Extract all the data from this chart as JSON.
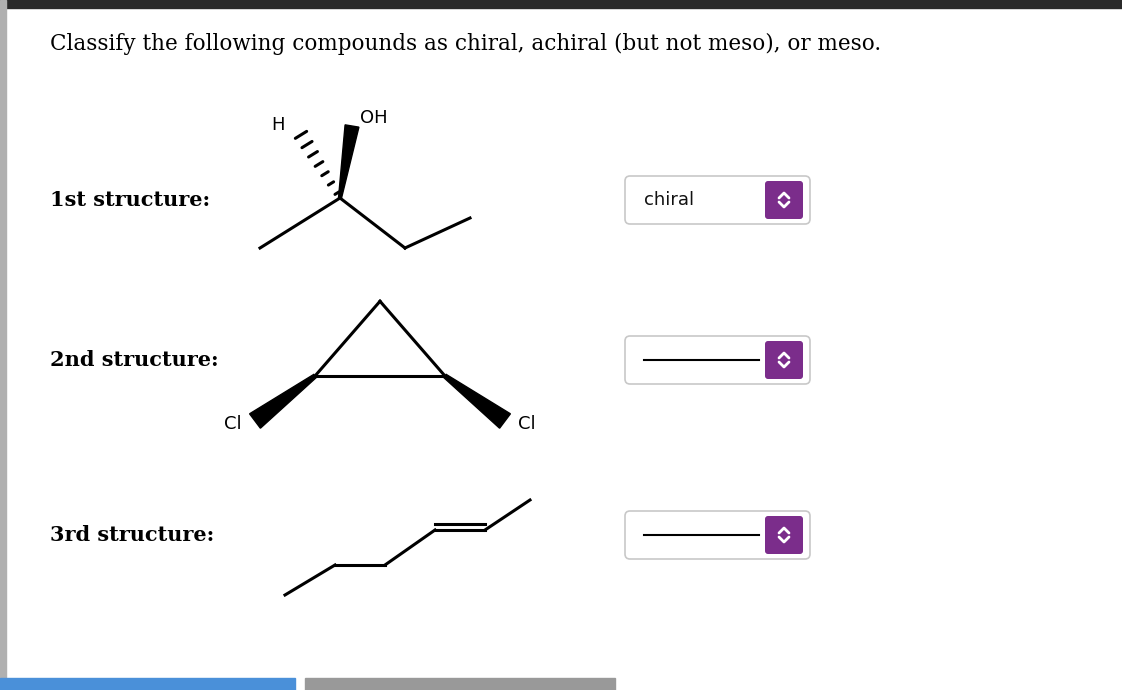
{
  "title": "Classify the following compounds as chiral, achiral (but not meso), or meso.",
  "title_fontsize": 15.5,
  "background_color": "#ffffff",
  "label_fontsize": 15,
  "labels": [
    "1st structure:",
    "2nd structure:",
    "3rd structure:"
  ],
  "answer1": "chiral",
  "spinner_color": "#7b2d8b",
  "top_bar_color": "#2a2a2a",
  "bottom_bar1_color": "#4a90d9",
  "bottom_bar2_color": "#888888",
  "lw": 2.2
}
